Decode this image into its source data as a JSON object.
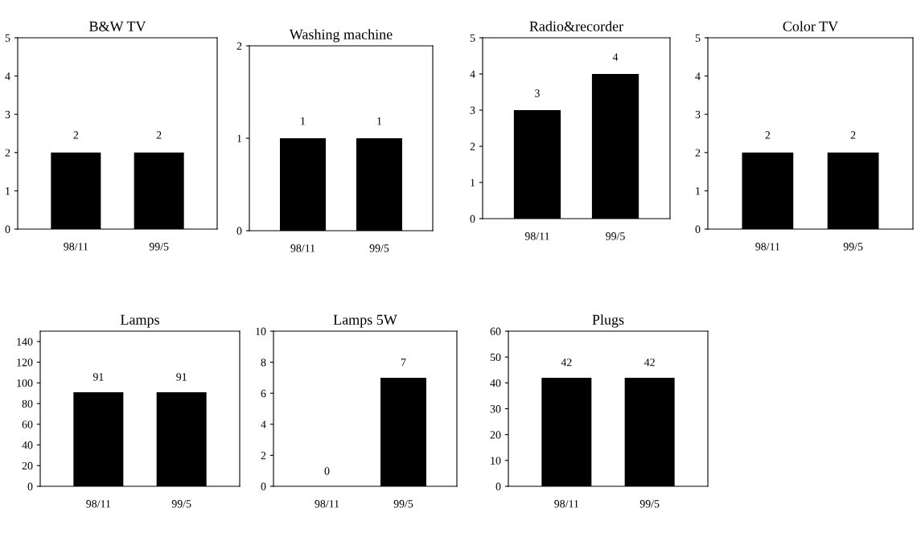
{
  "chart_data": [
    {
      "type": "bar",
      "title": "B&W TV",
      "categories": [
        "98/11",
        "99/5"
      ],
      "values": [
        2,
        2
      ],
      "color": "#000000",
      "ylim": [
        0,
        5
      ],
      "yticks": [
        0,
        1,
        2,
        3,
        4,
        5
      ],
      "data_labels": true
    },
    {
      "type": "bar",
      "title": "Washing machine",
      "categories": [
        "98/11",
        "99/5"
      ],
      "values": [
        1,
        1
      ],
      "color": "#000000",
      "ylim": [
        0,
        2
      ],
      "yticks": [
        0,
        1,
        2
      ],
      "data_labels": true
    },
    {
      "type": "bar",
      "title": "Radio&recorder",
      "categories": [
        "98/11",
        "99/5"
      ],
      "values": [
        3,
        4
      ],
      "color": "#000000",
      "ylim": [
        0,
        5
      ],
      "yticks": [
        0,
        1,
        2,
        3,
        4,
        5
      ],
      "data_labels": true
    },
    {
      "type": "bar",
      "title": "Color TV",
      "categories": [
        "98/11",
        "99/5"
      ],
      "values": [
        2,
        2
      ],
      "color": "#000000",
      "ylim": [
        0,
        5
      ],
      "yticks": [
        0,
        1,
        2,
        3,
        4,
        5
      ],
      "data_labels": true
    },
    {
      "type": "bar",
      "title": "Lamps",
      "categories": [
        "98/11",
        "99/5"
      ],
      "values": [
        91,
        91
      ],
      "color": "#000000",
      "ylim": [
        0,
        150
      ],
      "yticks": [
        0,
        20,
        40,
        60,
        80,
        100,
        120,
        140
      ],
      "data_labels": true
    },
    {
      "type": "bar",
      "title": "Lamps 5W",
      "categories": [
        "98/11",
        "99/5"
      ],
      "values": [
        0,
        7
      ],
      "color": "#000000",
      "ylim": [
        0,
        10
      ],
      "yticks": [
        0,
        2,
        4,
        6,
        8,
        10
      ],
      "data_labels": true
    },
    {
      "type": "bar",
      "title": "Plugs",
      "categories": [
        "98/11",
        "99/5"
      ],
      "values": [
        42,
        42
      ],
      "color": "#000000",
      "ylim": [
        0,
        60
      ],
      "yticks": [
        0,
        10,
        20,
        30,
        40,
        50,
        60
      ],
      "data_labels": true
    }
  ]
}
